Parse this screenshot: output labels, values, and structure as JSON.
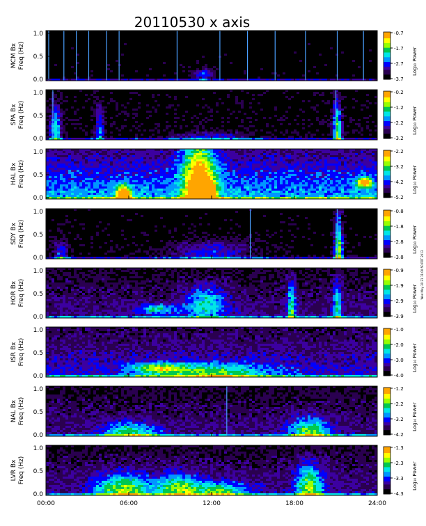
{
  "title": "20110530 x axis",
  "side_note": "Wed May 30 21 11:00:50 PDT 2013",
  "colorbar_label": "Log₁₀ Power",
  "palette": [
    "#000000",
    "#2a0050",
    "#3c00a0",
    "#0000ff",
    "#0096ff",
    "#00e6e6",
    "#00c850",
    "#96ff00",
    "#ffff00",
    "#ffa500",
    "#ff0000"
  ],
  "chart_data": {
    "type": "heatmap",
    "xlabel": "",
    "x_ticks": [
      "00:00",
      "06:00",
      "12:00",
      "18:00",
      "24:00"
    ],
    "xlim": [
      0,
      24
    ],
    "ylim": [
      0,
      1.0
    ],
    "y_ticks": [
      "0.0",
      "0.5",
      "1.0"
    ],
    "panels": [
      {
        "station": "MCM Bx",
        "ylabel": "Freq (Hz)",
        "cbar_ticks": [
          "-0.7",
          "-1.7",
          "-2.7",
          "-3.7"
        ],
        "range": [
          -3.7,
          -0.7
        ],
        "base": 0.02,
        "lines": [
          0.2,
          1.3,
          2.2,
          3.1,
          4.4,
          5.3,
          9.5,
          12.6,
          14.6,
          16.6,
          18.8,
          21.1,
          23.0
        ],
        "blobs": [
          [
            11.3,
            0.15,
            0.9,
            0.12,
            0.35
          ]
        ]
      },
      {
        "station": "SPA Bx",
        "ylabel": "Freq (Hz)",
        "cbar_ticks": [
          "-0.2",
          "-1.2",
          "-2.2",
          "-3.2"
        ],
        "range": [
          -3.2,
          -0.2
        ],
        "base": 0.06,
        "lines": [
          0.5,
          21.0
        ],
        "blobs": [
          [
            0.6,
            0.2,
            0.4,
            0.5,
            0.55
          ],
          [
            3.8,
            0.15,
            0.3,
            0.6,
            0.4
          ],
          [
            21.0,
            0.1,
            0.3,
            0.7,
            0.7
          ],
          [
            12,
            0.08,
            3,
            0.1,
            0.25
          ]
        ]
      },
      {
        "station": "HAL Bx",
        "ylabel": "Freq (Hz)",
        "cbar_ticks": [
          "-2.2",
          "-3.2",
          "-4.2",
          "-5.2"
        ],
        "range": [
          -5.2,
          -2.2
        ],
        "base": 0.5,
        "lines": [],
        "blobs": [
          [
            11.2,
            0.1,
            0.8,
            0.3,
            0.95
          ],
          [
            5.5,
            0.08,
            0.5,
            0.2,
            0.85
          ],
          [
            11.0,
            0.5,
            1.2,
            0.9,
            0.65
          ],
          [
            23.0,
            0.35,
            0.5,
            0.1,
            0.75
          ]
        ]
      },
      {
        "station": "SDY Bx",
        "ylabel": "Freq (Hz)",
        "cbar_ticks": [
          "-0.8",
          "-1.8",
          "-2.8",
          "-3.8"
        ],
        "range": [
          -3.8,
          -0.8
        ],
        "base": 0.04,
        "lines": [
          14.8,
          21.1
        ],
        "blobs": [
          [
            21.1,
            0.1,
            0.3,
            0.8,
            0.75
          ],
          [
            12,
            0.15,
            3,
            0.25,
            0.3
          ],
          [
            1.0,
            0.1,
            0.5,
            0.3,
            0.35
          ]
        ]
      },
      {
        "station": "HOR Bx",
        "ylabel": "Freq (Hz)",
        "cbar_ticks": [
          "-0.9",
          "-1.9",
          "-2.9",
          "-3.9"
        ],
        "range": [
          -3.9,
          -0.9
        ],
        "base": 0.22,
        "lines": [],
        "blobs": [
          [
            8,
            0.2,
            1.5,
            0.1,
            0.4
          ],
          [
            11.5,
            0.3,
            1.5,
            0.35,
            0.4
          ],
          [
            17.7,
            0.2,
            0.3,
            0.6,
            0.45
          ],
          [
            21.0,
            0.2,
            0.3,
            0.6,
            0.45
          ]
        ]
      },
      {
        "station": "ISR Bx",
        "ylabel": "Freq (Hz)",
        "cbar_ticks": [
          "-1.0",
          "-2.0",
          "-3.0",
          "-4.0"
        ],
        "range": [
          -4.0,
          -1.0
        ],
        "base": 0.32,
        "lines": [],
        "blobs": [
          [
            8,
            0.2,
            2,
            0.1,
            0.45
          ],
          [
            12,
            0.1,
            4,
            0.2,
            0.4
          ]
        ]
      },
      {
        "station": "NAL Bx",
        "ylabel": "Freq (Hz)",
        "cbar_ticks": [
          "-1.2",
          "-2.2",
          "-3.2",
          "-4.2"
        ],
        "range": [
          -4.2,
          -1.2
        ],
        "base": 0.22,
        "lines": [
          13.1
        ],
        "blobs": [
          [
            6,
            0.1,
            2,
            0.2,
            0.45
          ],
          [
            19,
            0.1,
            1.5,
            0.3,
            0.5
          ]
        ]
      },
      {
        "station": "LVR Bx",
        "ylabel": "Freq (Hz)",
        "cbar_ticks": [
          "-1.3",
          "-2.3",
          "-3.3",
          "-4.3"
        ],
        "range": [
          -4.3,
          -1.3
        ],
        "base": 0.24,
        "lines": [],
        "blobs": [
          [
            5.5,
            0.15,
            2,
            0.3,
            0.55
          ],
          [
            9.5,
            0.15,
            1.5,
            0.3,
            0.5
          ],
          [
            19,
            0.15,
            1,
            0.5,
            0.55
          ],
          [
            12.5,
            0.1,
            2,
            0.2,
            0.45
          ]
        ]
      }
    ]
  }
}
